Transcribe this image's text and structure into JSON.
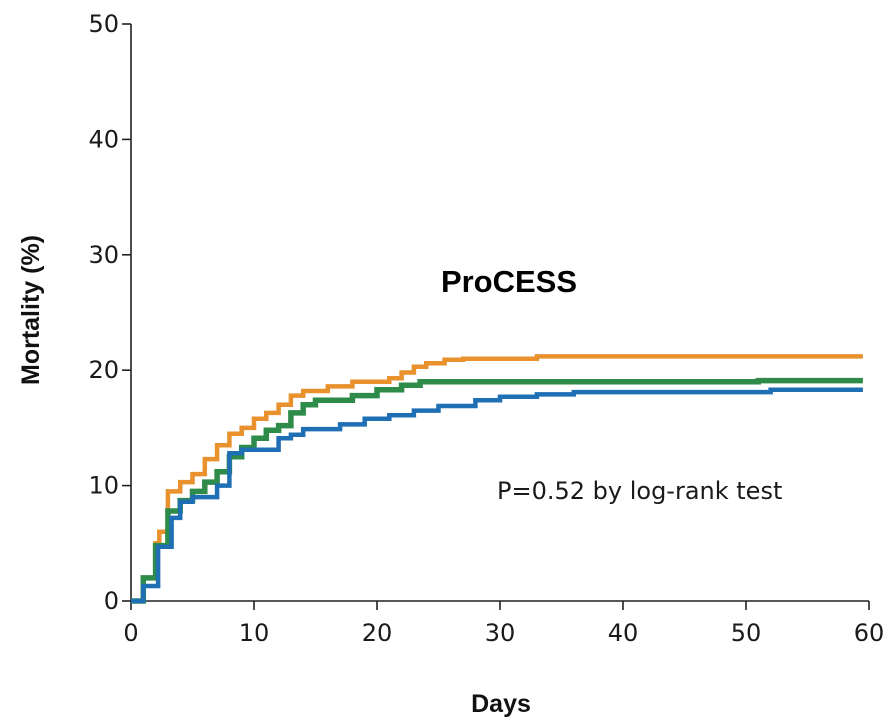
{
  "chart_data": {
    "type": "line",
    "step": true,
    "title": "ProCESS",
    "xlabel": "Days",
    "ylabel": "Mortality (%)",
    "xlim": [
      0,
      60
    ],
    "ylim": [
      0,
      50
    ],
    "xticks": [
      "0",
      "10",
      "20",
      "30",
      "40",
      "50",
      "60"
    ],
    "yticks": [
      "0",
      "10",
      "20",
      "30",
      "40",
      "50"
    ],
    "grid": false,
    "annotation": "P=0.52 by log-rank test",
    "series": [
      {
        "color": "#e8912d",
        "points": [
          [
            0,
            0
          ],
          [
            1,
            0
          ],
          [
            1,
            2
          ],
          [
            2,
            2
          ],
          [
            2,
            5
          ],
          [
            2.3,
            5
          ],
          [
            2.3,
            6
          ],
          [
            3,
            6
          ],
          [
            3,
            9.5
          ],
          [
            4,
            9.5
          ],
          [
            4,
            10.3
          ],
          [
            5,
            10.3
          ],
          [
            5,
            11
          ],
          [
            6,
            11
          ],
          [
            6,
            12.3
          ],
          [
            7,
            12.3
          ],
          [
            7,
            13.5
          ],
          [
            8,
            13.5
          ],
          [
            8,
            14.5
          ],
          [
            9,
            14.5
          ],
          [
            9,
            15
          ],
          [
            10,
            15
          ],
          [
            10,
            15.8
          ],
          [
            11,
            15.8
          ],
          [
            11,
            16.3
          ],
          [
            12,
            16.3
          ],
          [
            12,
            17
          ],
          [
            13,
            17
          ],
          [
            13,
            17.8
          ],
          [
            14,
            17.8
          ],
          [
            14,
            18.2
          ],
          [
            16,
            18.2
          ],
          [
            16,
            18.6
          ],
          [
            18,
            18.6
          ],
          [
            18,
            19
          ],
          [
            21,
            19
          ],
          [
            21,
            19.3
          ],
          [
            22,
            19.3
          ],
          [
            22,
            19.8
          ],
          [
            23,
            19.8
          ],
          [
            23,
            20.3
          ],
          [
            24,
            20.3
          ],
          [
            24,
            20.6
          ],
          [
            25.5,
            20.6
          ],
          [
            25.5,
            20.9
          ],
          [
            27,
            20.9
          ],
          [
            27,
            21
          ],
          [
            33,
            21
          ],
          [
            33,
            21.2
          ],
          [
            59.5,
            21.2
          ]
        ]
      },
      {
        "color": "#2e8b4a",
        "points": [
          [
            0,
            0
          ],
          [
            1,
            0
          ],
          [
            1,
            2
          ],
          [
            2,
            2
          ],
          [
            2,
            4.8
          ],
          [
            3,
            4.8
          ],
          [
            3,
            7.8
          ],
          [
            4,
            7.8
          ],
          [
            4,
            8.7
          ],
          [
            5,
            8.7
          ],
          [
            5,
            9.5
          ],
          [
            6,
            9.5
          ],
          [
            6,
            10.3
          ],
          [
            7,
            10.3
          ],
          [
            7,
            11.2
          ],
          [
            8,
            11.2
          ],
          [
            8,
            12.5
          ],
          [
            9,
            12.5
          ],
          [
            9,
            13.3
          ],
          [
            10,
            13.3
          ],
          [
            10,
            14.1
          ],
          [
            11,
            14.1
          ],
          [
            11,
            14.8
          ],
          [
            12,
            14.8
          ],
          [
            12,
            15.2
          ],
          [
            13,
            15.2
          ],
          [
            13,
            16.3
          ],
          [
            14,
            16.3
          ],
          [
            14,
            17
          ],
          [
            15,
            17
          ],
          [
            15,
            17.4
          ],
          [
            18,
            17.4
          ],
          [
            18,
            17.8
          ],
          [
            20,
            17.8
          ],
          [
            20,
            18.3
          ],
          [
            22,
            18.3
          ],
          [
            22,
            18.7
          ],
          [
            23.5,
            18.7
          ],
          [
            23.5,
            19
          ],
          [
            51,
            19
          ],
          [
            51,
            19.1
          ],
          [
            59.5,
            19.1
          ]
        ]
      },
      {
        "color": "#1f6fb5",
        "points": [
          [
            0,
            0
          ],
          [
            1,
            0
          ],
          [
            1,
            1.3
          ],
          [
            2.2,
            1.3
          ],
          [
            2.2,
            4.7
          ],
          [
            3.3,
            4.7
          ],
          [
            3.3,
            7.2
          ],
          [
            4,
            7.2
          ],
          [
            4,
            8.6
          ],
          [
            5,
            8.6
          ],
          [
            5,
            9
          ],
          [
            7,
            9
          ],
          [
            7,
            10
          ],
          [
            8,
            10
          ],
          [
            8,
            12.8
          ],
          [
            9,
            12.8
          ],
          [
            9,
            13.1
          ],
          [
            12,
            13.1
          ],
          [
            12,
            14.1
          ],
          [
            13,
            14.1
          ],
          [
            13,
            14.4
          ],
          [
            14,
            14.4
          ],
          [
            14,
            14.9
          ],
          [
            17,
            14.9
          ],
          [
            17,
            15.3
          ],
          [
            19,
            15.3
          ],
          [
            19,
            15.8
          ],
          [
            21,
            15.8
          ],
          [
            21,
            16.1
          ],
          [
            23,
            16.1
          ],
          [
            23,
            16.5
          ],
          [
            25,
            16.5
          ],
          [
            25,
            16.9
          ],
          [
            28,
            16.9
          ],
          [
            28,
            17.4
          ],
          [
            30,
            17.4
          ],
          [
            30,
            17.7
          ],
          [
            33,
            17.7
          ],
          [
            33,
            17.9
          ],
          [
            36,
            17.9
          ],
          [
            36,
            18.1
          ],
          [
            52,
            18.1
          ],
          [
            52,
            18.3
          ],
          [
            59.5,
            18.3
          ]
        ]
      }
    ]
  }
}
